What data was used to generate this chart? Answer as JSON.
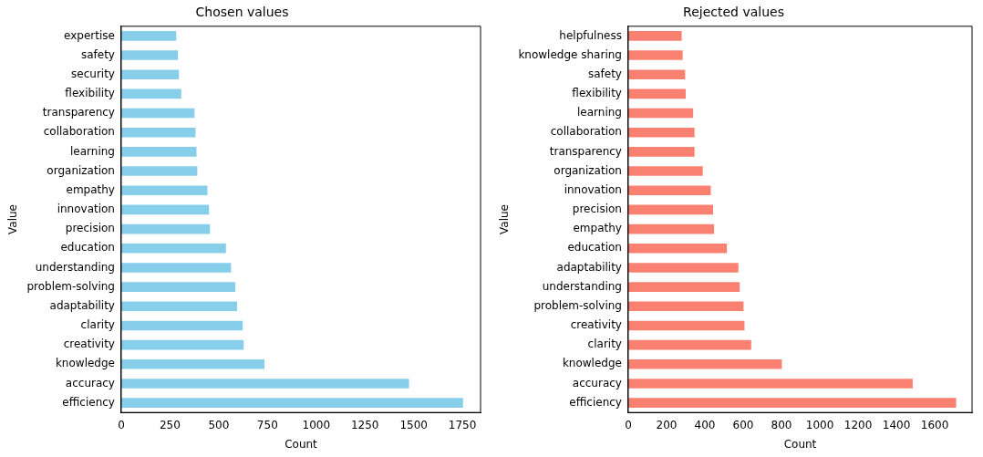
{
  "chart_data": [
    {
      "type": "bar",
      "orientation": "horizontal",
      "title": "Chosen values",
      "xlabel": "Count",
      "ylabel": "Value",
      "categories": [
        "expertise",
        "safety",
        "security",
        "flexibility",
        "transparency",
        "collaboration",
        "learning",
        "organization",
        "empathy",
        "innovation",
        "precision",
        "education",
        "understanding",
        "problem-solving",
        "adaptability",
        "clarity",
        "creativity",
        "knowledge",
        "accuracy",
        "efficiency"
      ],
      "values": [
        282,
        291,
        296,
        308,
        376,
        381,
        386,
        390,
        442,
        450,
        455,
        537,
        563,
        585,
        594,
        623,
        628,
        735,
        1476,
        1753
      ],
      "color": "#87ceeb",
      "xlim": [
        0,
        1843
      ],
      "xticks": [
        0,
        250,
        500,
        750,
        1000,
        1250,
        1500,
        1750
      ],
      "grid": false,
      "legend": false
    },
    {
      "type": "bar",
      "orientation": "horizontal",
      "title": "Rejected values",
      "xlabel": "Count",
      "ylabel": "Value",
      "categories": [
        "helpfulness",
        "knowledge sharing",
        "safety",
        "flexibility",
        "learning",
        "collaboration",
        "transparency",
        "organization",
        "innovation",
        "precision",
        "empathy",
        "education",
        "adaptability",
        "understanding",
        "problem-solving",
        "creativity",
        "clarity",
        "knowledge",
        "accuracy",
        "efficiency"
      ],
      "values": [
        279,
        284,
        297,
        300,
        339,
        346,
        346,
        389,
        431,
        443,
        448,
        515,
        575,
        582,
        602,
        607,
        642,
        802,
        1485,
        1712
      ],
      "color": "#fa8072",
      "xlim": [
        0,
        1795
      ],
      "xticks": [
        0,
        200,
        400,
        600,
        800,
        1000,
        1200,
        1400,
        1600
      ],
      "grid": false,
      "legend": false
    }
  ]
}
